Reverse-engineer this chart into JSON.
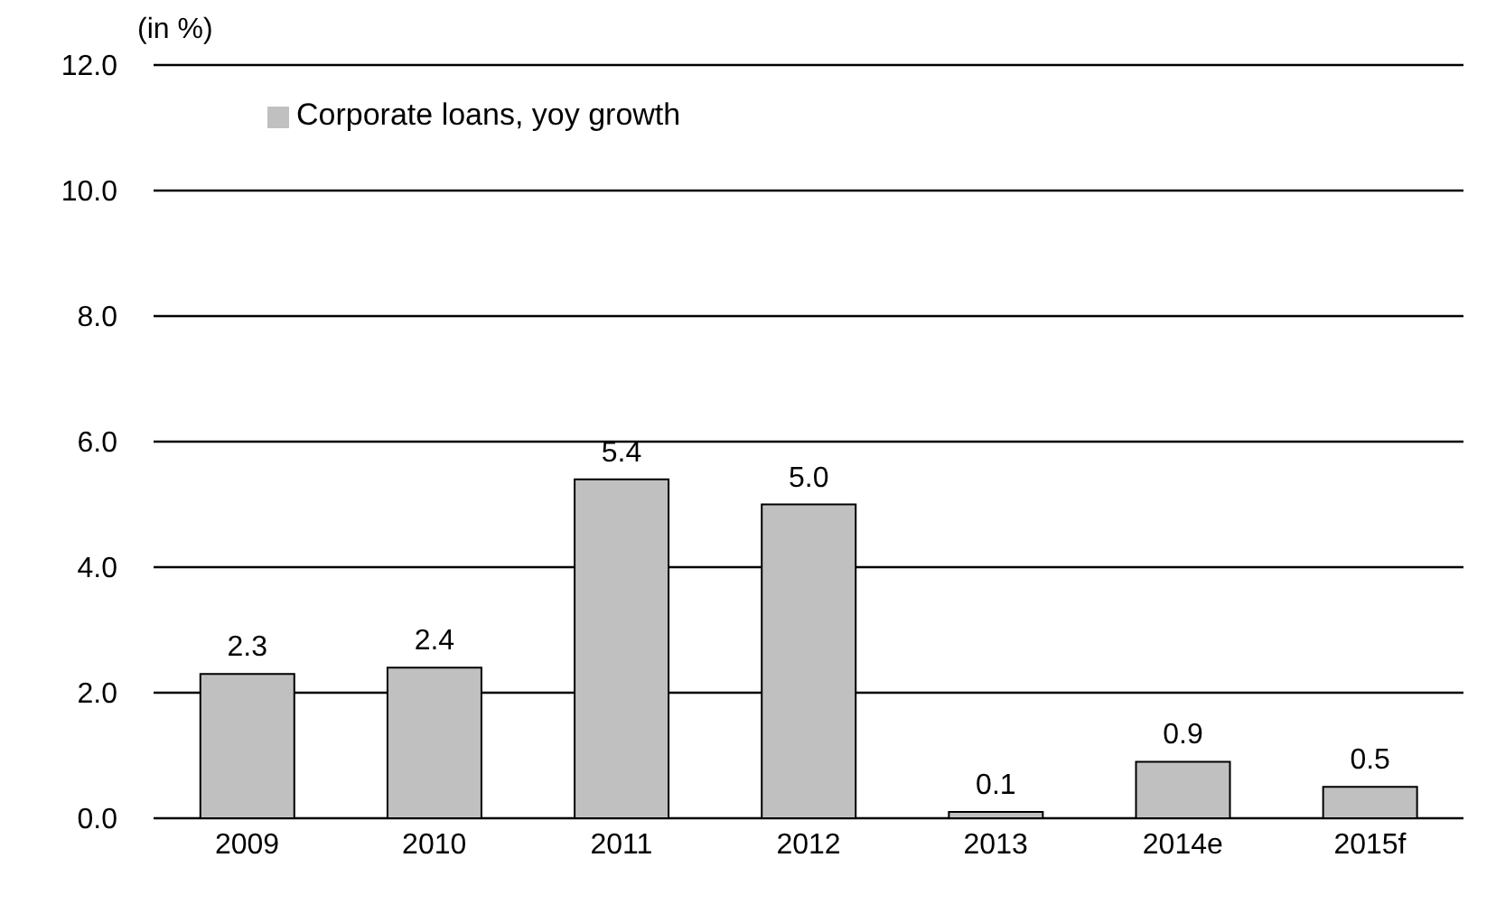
{
  "chart_data": {
    "type": "bar",
    "ylabel": "(in %)",
    "categories": [
      "2009",
      "2010",
      "2011",
      "2012",
      "2013",
      "2014e",
      "2015f"
    ],
    "series": [
      {
        "name": "Corporate loans, yoy growth",
        "color": "#c0c0c0",
        "values": [
          2.3,
          2.4,
          5.4,
          5.0,
          0.1,
          0.9,
          0.5
        ],
        "value_labels": [
          "2.3",
          "2.4",
          "5.4",
          "5.0",
          "0.1",
          "0.9",
          "0.5"
        ]
      }
    ],
    "ylim": [
      0,
      12
    ],
    "yticks": [
      {
        "value": 0,
        "label": "0.0"
      },
      {
        "value": 2,
        "label": "2.0"
      },
      {
        "value": 4,
        "label": "4.0"
      },
      {
        "value": 6,
        "label": "6.0"
      },
      {
        "value": 8,
        "label": "8.0"
      },
      {
        "value": 10,
        "label": "10.0"
      },
      {
        "value": 12,
        "label": "12.0"
      }
    ],
    "grid": "y",
    "legend": "top left"
  }
}
